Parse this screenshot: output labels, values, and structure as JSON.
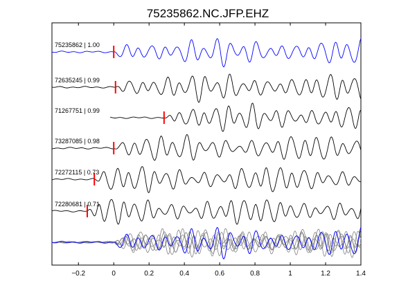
{
  "chart_data": {
    "type": "line",
    "title": "75235862.NC.JFP.EHZ",
    "xlabel": "",
    "ylabel": "",
    "xlim": [
      -0.35,
      1.4
    ],
    "xticks": [
      -0.2,
      0,
      0.2,
      0.4,
      0.6,
      0.8,
      1,
      1.2,
      1.4
    ],
    "xtick_labels": [
      "−0.2",
      "0",
      "0.2",
      "0.4",
      "0.6",
      "0.8",
      "1",
      "1.2",
      "1.4"
    ],
    "grid": false,
    "colors": {
      "master": "#0000ff",
      "trace": "#000000",
      "pick": "#ff0000",
      "overlay": "#808080"
    },
    "traces": [
      {
        "label": "75235862 | 1.00",
        "pick_time": 0.0,
        "color": "#0000ff"
      },
      {
        "label": "72635245 | 0.99",
        "pick_time": 0.01,
        "color": "#000000"
      },
      {
        "label": "71267751 | 0.99",
        "pick_time": 0.285,
        "color": "#000000"
      },
      {
        "label": "73287085 | 0.98",
        "pick_time": 0.0,
        "color": "#000000"
      },
      {
        "label": "72272115 | 0.73",
        "pick_time": -0.11,
        "color": "#000000"
      },
      {
        "label": "72280681 | 0.71",
        "pick_time": -0.15,
        "color": "#000000"
      }
    ],
    "stack": {
      "description": "aligned overlay",
      "count": 6
    }
  }
}
